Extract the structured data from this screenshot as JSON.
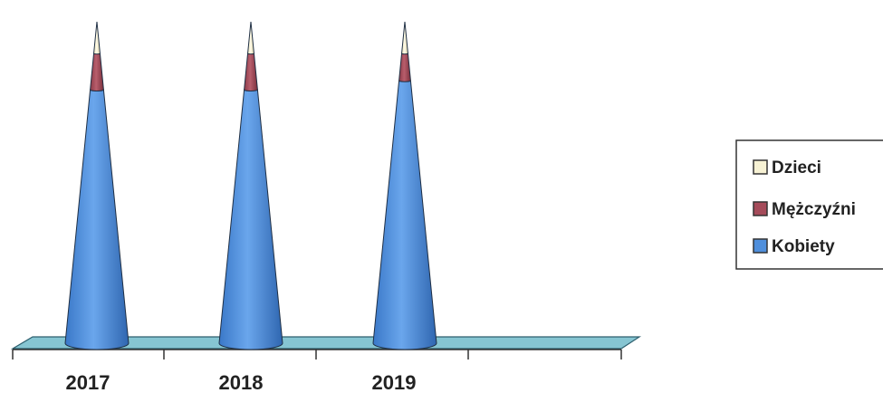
{
  "chart_data": {
    "type": "bar",
    "style": "3d-cone-stacked",
    "categories": [
      "2017",
      "2018",
      "2019"
    ],
    "series": [
      {
        "name": "Kobiety",
        "color": "#4f8fdc",
        "values": [
          280,
          280,
          290
        ]
      },
      {
        "name": "Mężczyźni",
        "color": "#a54b5a",
        "values": [
          40,
          40,
          30
        ]
      },
      {
        "name": "Dzieci",
        "color": "#f7f2d4",
        "values": [
          35,
          35,
          35
        ]
      }
    ],
    "title": "",
    "xlabel": "",
    "ylabel": "",
    "legend_position": "right",
    "grid": false
  },
  "legend": {
    "items": [
      {
        "label": "Dzieci",
        "color": "#f7f2d4"
      },
      {
        "label": "Mężczyźni",
        "color": "#a54b5a"
      },
      {
        "label": "Kobiety",
        "color": "#4f8fdc"
      }
    ]
  }
}
